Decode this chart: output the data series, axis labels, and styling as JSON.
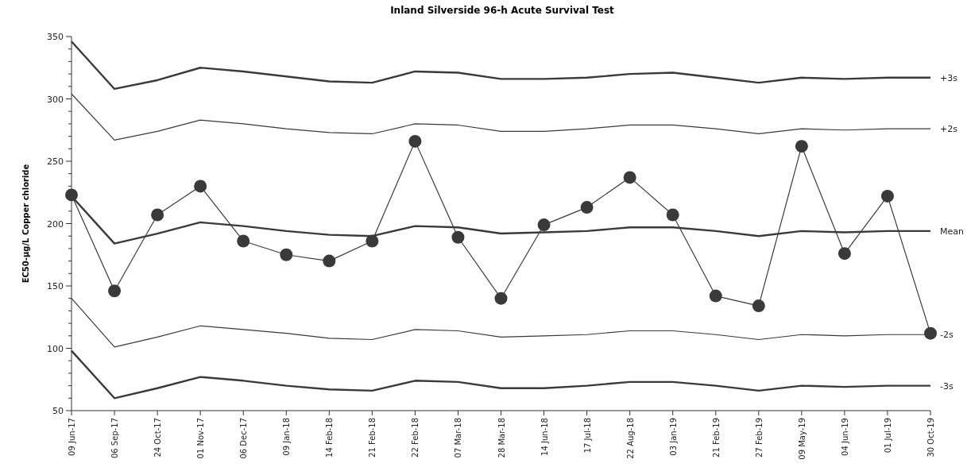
{
  "chart_data": {
    "type": "line",
    "title": "Inland Silverside 96-h Acute Survival Test",
    "ylabel": "EC50-µg/L Copper chloride",
    "categories": [
      "09 Jun-17",
      "06 Sep-17",
      "24 Oct-17",
      "01 Nov-17",
      "06 Dec-17",
      "09 Jan-18",
      "14 Feb-18",
      "21 Feb-18",
      "22 Feb-18",
      "07 Mar-18",
      "28 Mar-18",
      "14 Jun-18",
      "17 Jul-18",
      "22 Aug-18",
      "03 Jan-19",
      "21 Feb-19",
      "27 Feb-19",
      "09 May-19",
      "04 Jun-19",
      "01 Jul-19",
      "30 Oct-19"
    ],
    "series": [
      {
        "name": "+3s",
        "color": "#3a3a3a",
        "values": [
          346,
          308,
          315,
          325,
          322,
          318,
          314,
          313,
          322,
          321,
          316,
          316,
          317,
          320,
          321,
          317,
          313,
          317,
          316,
          317,
          317
        ]
      },
      {
        "name": "+2s",
        "color": "#3a3a3a",
        "values": [
          304,
          267,
          274,
          283,
          280,
          276,
          273,
          272,
          280,
          279,
          274,
          274,
          276,
          279,
          279,
          276,
          272,
          276,
          275,
          276,
          276
        ]
      },
      {
        "name": "Mean",
        "color": "#3a3a3a",
        "values": [
          222,
          184,
          192,
          201,
          198,
          194,
          191,
          190,
          198,
          197,
          192,
          193,
          194,
          197,
          197,
          194,
          190,
          194,
          193,
          194,
          194
        ]
      },
      {
        "name": "-2s",
        "color": "#3a3a3a",
        "values": [
          140,
          101,
          109,
          118,
          115,
          112,
          108,
          107,
          115,
          114,
          109,
          110,
          111,
          114,
          114,
          111,
          107,
          111,
          110,
          111,
          111
        ]
      },
      {
        "name": "-3s",
        "color": "#3a3a3a",
        "values": [
          98,
          60,
          68,
          77,
          74,
          70,
          67,
          66,
          74,
          73,
          68,
          68,
          70,
          73,
          73,
          70,
          66,
          70,
          69,
          70,
          70
        ]
      },
      {
        "color": "#3a3a3a",
        "marker": "circle",
        "values": [
          223,
          146,
          207,
          230,
          186,
          175,
          170,
          186,
          266,
          189,
          140,
          199,
          213,
          237,
          207,
          142,
          134,
          262,
          176,
          222,
          112
        ]
      }
    ],
    "ylim": [
      50,
      350
    ],
    "yticks": [
      50,
      {
        "value": 60,
        "label": null
      },
      {
        "value": 70,
        "label": null
      },
      {
        "value": 80,
        "label": null
      },
      {
        "value": 90,
        "label": null
      },
      100,
      {
        "value": 110,
        "label": null
      },
      {
        "value": 120,
        "label": null
      },
      {
        "value": 130,
        "label": null
      },
      {
        "value": 140,
        "label": null
      },
      150,
      {
        "value": 160,
        "label": null
      },
      {
        "value": 170,
        "label": null
      },
      {
        "value": 180,
        "label": null
      },
      {
        "value": 190,
        "label": null
      },
      200,
      {
        "value": 210,
        "label": null
      },
      {
        "value": 220,
        "label": null
      },
      {
        "value": 230,
        "label": null
      },
      {
        "value": 240,
        "label": null
      },
      250,
      {
        "value": 260,
        "label": null
      },
      {
        "value": 270,
        "label": null
      },
      {
        "value": 280,
        "label": null
      },
      {
        "value": 290,
        "label": null
      },
      300,
      {
        "value": 310,
        "label": null
      },
      {
        "value": 320,
        "label": null
      },
      {
        "value": 330,
        "label": null
      },
      {
        "value": 340,
        "label": null
      },
      350
    ],
    "grid": false
  }
}
